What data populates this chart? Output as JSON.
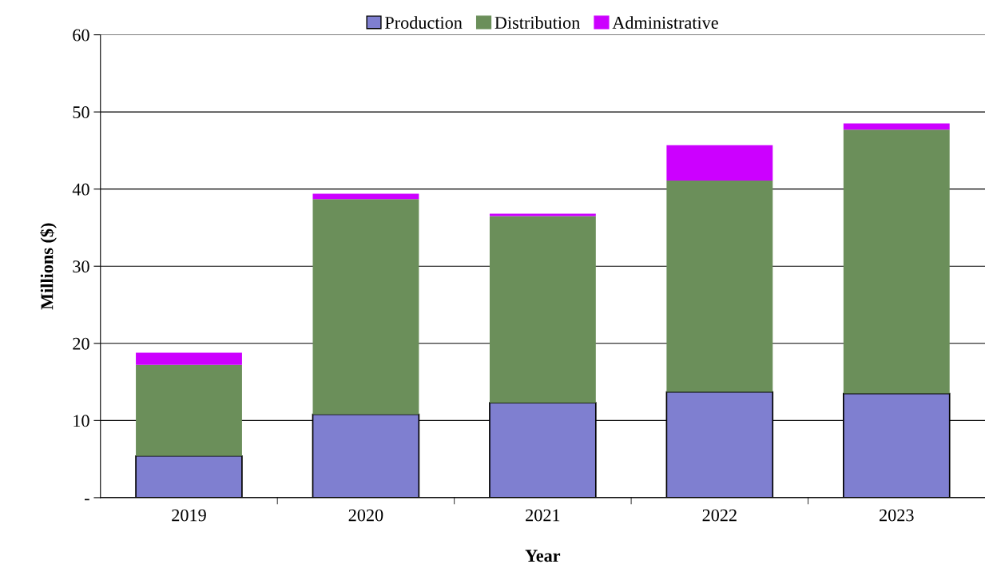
{
  "chart_data": {
    "type": "bar",
    "stacked": true,
    "xlabel": "Year",
    "ylabel": "Millions ($)",
    "categories": [
      "2019",
      "2020",
      "2021",
      "2022",
      "2023"
    ],
    "series": [
      {
        "name": "Production",
        "color": "#7f7fd0",
        "values": [
          5.4,
          10.8,
          12.3,
          13.7,
          13.5
        ]
      },
      {
        "name": "Distribution",
        "color": "#6b8f5a",
        "values": [
          11.8,
          27.9,
          24.2,
          27.4,
          34.2
        ]
      },
      {
        "name": "Administrative",
        "color": "#cc00ff",
        "values": [
          1.6,
          0.7,
          0.3,
          4.6,
          0.8
        ]
      }
    ],
    "ylim": [
      0,
      60
    ],
    "yticks": [
      {
        "value": 0,
        "label": "-"
      },
      10,
      20,
      30,
      40,
      50,
      60
    ],
    "grid": "y",
    "legend": "top"
  }
}
